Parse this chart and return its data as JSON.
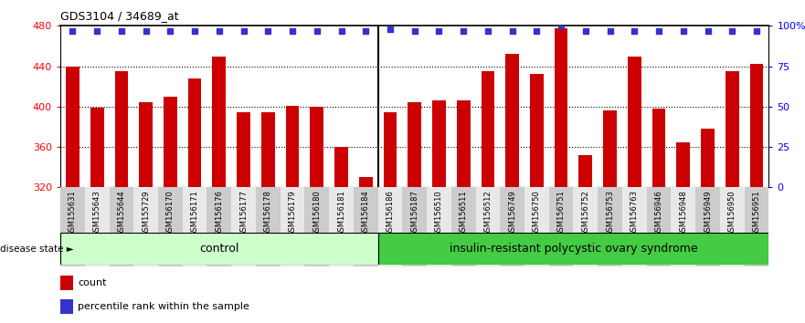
{
  "title": "GDS3104 / 34689_at",
  "categories": [
    "GSM155631",
    "GSM155643",
    "GSM155644",
    "GSM155729",
    "GSM156170",
    "GSM156171",
    "GSM156176",
    "GSM156177",
    "GSM156178",
    "GSM156179",
    "GSM156180",
    "GSM156181",
    "GSM156184",
    "GSM156186",
    "GSM156187",
    "GSM156510",
    "GSM156511",
    "GSM156512",
    "GSM156749",
    "GSM156750",
    "GSM156751",
    "GSM156752",
    "GSM156753",
    "GSM156763",
    "GSM156946",
    "GSM156948",
    "GSM156949",
    "GSM156950",
    "GSM156951"
  ],
  "bar_values": [
    440,
    399,
    435,
    404,
    410,
    428,
    450,
    394,
    394,
    401,
    400,
    360,
    330,
    394,
    404,
    406,
    406,
    435,
    452,
    432,
    478,
    352,
    396,
    450,
    398,
    365,
    378,
    435,
    442
  ],
  "percentile_values": [
    97,
    97,
    97,
    97,
    97,
    97,
    97,
    97,
    97,
    97,
    97,
    97,
    97,
    98,
    97,
    97,
    97,
    97,
    97,
    97,
    100,
    97,
    97,
    97,
    97,
    97,
    97,
    97,
    97
  ],
  "control_count": 13,
  "disease_count": 16,
  "ymin": 320,
  "ymax": 480,
  "yticks": [
    320,
    360,
    400,
    440,
    480
  ],
  "right_yticks": [
    0,
    25,
    50,
    75,
    100
  ],
  "right_tick_labels": [
    "0",
    "25",
    "50",
    "75",
    "100%"
  ],
  "bar_color": "#cc0000",
  "dot_color": "#3333cc",
  "axes_bg": "#ffffff",
  "control_color": "#ccffcc",
  "disease_color": "#44cc44",
  "tick_bg_color": "#cccccc",
  "control_label": "control",
  "disease_label": "insulin-resistant polycystic ovary syndrome",
  "disease_state_label": "disease state",
  "legend_count_label": "count",
  "legend_pct_label": "percentile rank within the sample"
}
